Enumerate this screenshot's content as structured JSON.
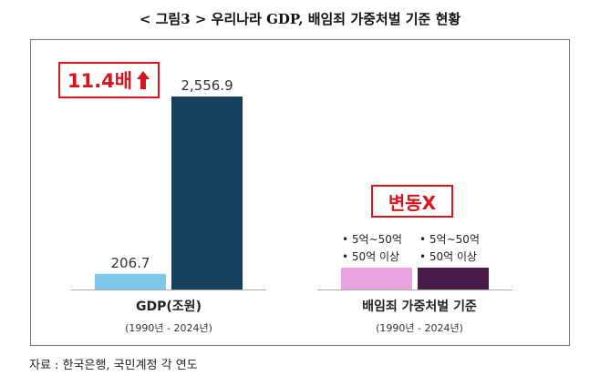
{
  "title": "< 그림3 > 우리나라 GDP, 배임죄 가중처벌 기준 현황",
  "source": "자료 : 한국은행, 국민계정 각 연도",
  "gdp_badge": {
    "text": "11.4배",
    "color": "#d8141c"
  },
  "threshold_badge": {
    "text": "변동X",
    "color": "#d8141c"
  },
  "threshold_notes": {
    "old": [
      "• 5억~50억",
      "• 50억 이상"
    ],
    "new": [
      "• 5억~50억",
      "• 50억 이상"
    ]
  },
  "categories": [
    {
      "name": "GDP(조원)",
      "period": "(1990년 - 2024년)"
    },
    {
      "name": "배임죄 가중처벌 기준",
      "period": "(1990년 - 2024년)"
    }
  ],
  "chart_data": {
    "type": "bar",
    "categories": [
      "GDP(조원)",
      "배임죄 가중처벌 기준"
    ],
    "series": [
      {
        "values": [
          206.7,
          null
        ],
        "labels": [
          "206.7",
          ""
        ],
        "color": "#7ec8ea"
      },
      {
        "values": [
          2556.9,
          null
        ],
        "labels": [
          "2,556.9",
          ""
        ],
        "color": "#17405c"
      }
    ],
    "threshold_bars": {
      "colors": [
        "#e9a3e2",
        "#4a1a4a"
      ]
    },
    "ylim": [
      0,
      2556.9
    ]
  },
  "colors": {
    "arrow": "#d8141c",
    "baseline": "#aaaaaa"
  }
}
